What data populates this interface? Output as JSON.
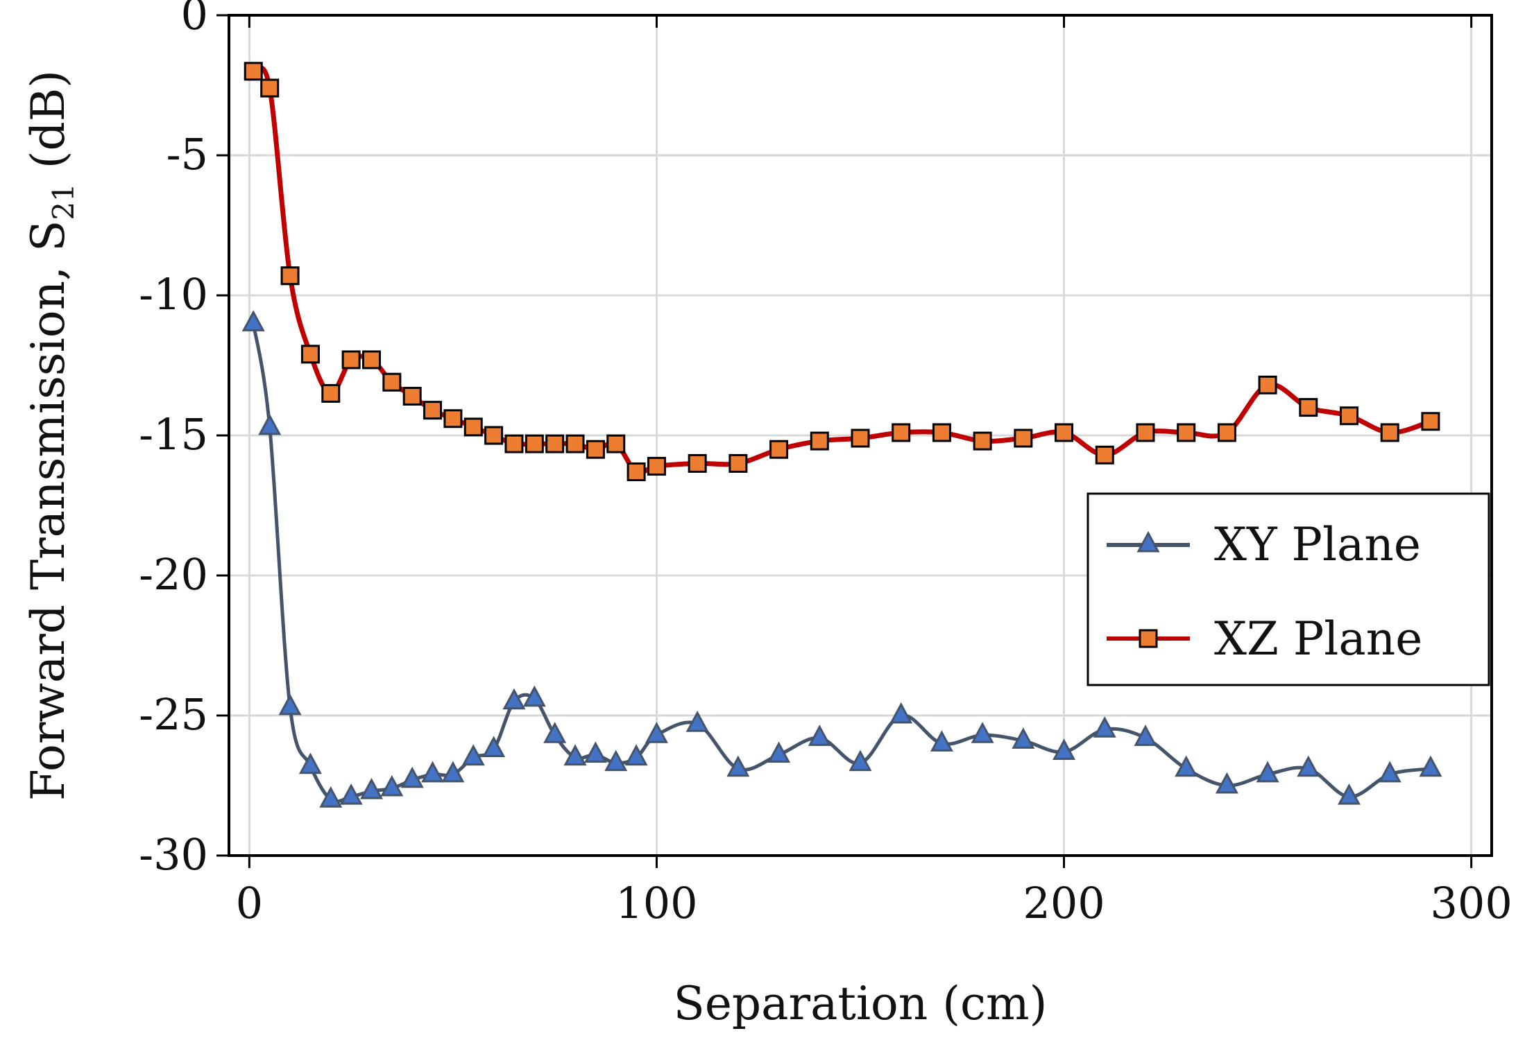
{
  "chart_data": {
    "type": "line",
    "title": "",
    "xlabel": "Separation (cm)",
    "ylabel_main": "Forward Transmission, S",
    "ylabel_sub": "21",
    "ylabel_unit": " (dB)",
    "xlim": [
      -5,
      305
    ],
    "ylim": [
      -30,
      0
    ],
    "xticks": [
      0,
      100,
      200,
      300
    ],
    "yticks": [
      0,
      -5,
      -10,
      -15,
      -20,
      -25,
      -30
    ],
    "xtick_labels": [
      "0",
      "100",
      "200",
      "300"
    ],
    "ytick_labels": [
      "0",
      "-5",
      "-10",
      "-15",
      "-20",
      "-25",
      "-30"
    ],
    "grid": true,
    "legend_position": "center-right",
    "series": [
      {
        "name": "XY Plane",
        "color": "#44546A",
        "line_color": "#44546A",
        "marker": "triangle",
        "marker_fill": "#4472C4",
        "x": [
          1,
          5,
          10,
          15,
          20,
          25,
          30,
          35,
          40,
          45,
          50,
          55,
          60,
          65,
          70,
          75,
          80,
          85,
          90,
          95,
          100,
          110,
          120,
          130,
          140,
          150,
          160,
          170,
          180,
          190,
          200,
          210,
          220,
          230,
          240,
          250,
          260,
          270,
          280,
          290
        ],
        "values": [
          -11.0,
          -14.7,
          -24.7,
          -26.8,
          -28.0,
          -27.9,
          -27.7,
          -27.6,
          -27.3,
          -27.1,
          -27.1,
          -26.5,
          -26.2,
          -24.5,
          -24.4,
          -25.7,
          -26.5,
          -26.4,
          -26.7,
          -26.5,
          -25.7,
          -25.3,
          -26.9,
          -26.4,
          -25.8,
          -26.7,
          -25.0,
          -26.0,
          -25.7,
          -25.9,
          -26.3,
          -25.5,
          -25.8,
          -26.9,
          -27.5,
          -27.1,
          -26.9,
          -27.9,
          -27.1,
          -26.9
        ]
      },
      {
        "name": "XZ Plane",
        "color": "#C00000",
        "line_color": "#C00000",
        "marker": "square",
        "marker_fill": "#ED7D31",
        "x": [
          1,
          5,
          10,
          15,
          20,
          25,
          30,
          35,
          40,
          45,
          50,
          55,
          60,
          65,
          70,
          75,
          80,
          85,
          90,
          95,
          100,
          110,
          120,
          130,
          140,
          150,
          160,
          170,
          180,
          190,
          200,
          210,
          220,
          230,
          240,
          250,
          260,
          270,
          280,
          290
        ],
        "values": [
          -2.0,
          -2.6,
          -9.3,
          -12.1,
          -13.5,
          -12.3,
          -12.3,
          -13.1,
          -13.6,
          -14.1,
          -14.4,
          -14.7,
          -15.0,
          -15.3,
          -15.3,
          -15.3,
          -15.3,
          -15.5,
          -15.3,
          -16.3,
          -16.1,
          -16.0,
          -16.0,
          -15.5,
          -15.2,
          -15.1,
          -14.9,
          -14.9,
          -15.2,
          -15.1,
          -14.9,
          -15.7,
          -14.9,
          -14.9,
          -14.9,
          -13.2,
          -14.0,
          -14.3,
          -14.9,
          -14.5
        ]
      }
    ]
  }
}
